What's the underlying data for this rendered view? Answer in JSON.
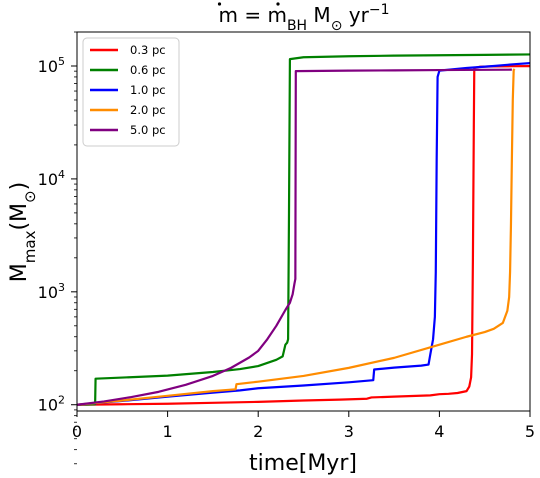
{
  "chart_data": {
    "type": "line",
    "title": "ṁ = ṁ_BH M⊙ yr⁻¹",
    "title_parts": {
      "lhs": "m",
      "eq": " = ",
      "rhs": "m",
      "sub": "BH",
      "unit_m": " M",
      "sun": "⊙",
      "unit_yr": " yr",
      "exp": "−1"
    },
    "xlabel": "time[Myr]",
    "ylabel_parts": {
      "main": "M",
      "sub": "max",
      "unit_open": "(M",
      "sun": "⊙",
      "unit_close": ")"
    },
    "xlim": [
      0,
      5
    ],
    "ylim": [
      88,
      200000
    ],
    "yscale": "log",
    "x_ticks": [
      "0",
      "1",
      "2",
      "3",
      "4",
      "5"
    ],
    "y_ticks": [
      {
        "value": 100,
        "base": "10",
        "exp": "2"
      },
      {
        "value": 1000,
        "base": "10",
        "exp": "3"
      },
      {
        "value": 10000,
        "base": "10",
        "exp": "4"
      },
      {
        "value": 100000,
        "base": "10",
        "exp": "5"
      }
    ],
    "legend_position": "upper-left",
    "series": [
      {
        "name": "0.3 pc",
        "color": "#ff0000",
        "points": [
          [
            0,
            100
          ],
          [
            0.5,
            101
          ],
          [
            1,
            102
          ],
          [
            1.5,
            104
          ],
          [
            2,
            106
          ],
          [
            2.5,
            109
          ],
          [
            2.9,
            111
          ],
          [
            3.2,
            113
          ],
          [
            3.25,
            116
          ],
          [
            3.5,
            118
          ],
          [
            3.9,
            121
          ],
          [
            4.0,
            124
          ],
          [
            4.1,
            125
          ],
          [
            4.2,
            127
          ],
          [
            4.3,
            132
          ],
          [
            4.33,
            145
          ],
          [
            4.35,
            175
          ],
          [
            4.36,
            280
          ],
          [
            4.37,
            2000
          ],
          [
            4.38,
            30000
          ],
          [
            4.385,
            96000
          ],
          [
            4.45,
            98500
          ],
          [
            4.6,
            99200
          ],
          [
            4.8,
            99600
          ],
          [
            5.0,
            99800
          ]
        ]
      },
      {
        "name": "0.6 pc",
        "color": "#008000",
        "points": [
          [
            0,
            100
          ],
          [
            0.2,
            101
          ],
          [
            0.205,
            170
          ],
          [
            0.5,
            174
          ],
          [
            1.0,
            181
          ],
          [
            1.5,
            195
          ],
          [
            1.8,
            207
          ],
          [
            2.0,
            220
          ],
          [
            2.2,
            250
          ],
          [
            2.27,
            268
          ],
          [
            2.3,
            340
          ],
          [
            2.32,
            355
          ],
          [
            2.33,
            380
          ],
          [
            2.34,
            5000
          ],
          [
            2.35,
            115000
          ],
          [
            2.5,
            119500
          ],
          [
            3,
            122000
          ],
          [
            3.5,
            123500
          ],
          [
            4,
            124500
          ],
          [
            4.5,
            125500
          ],
          [
            5,
            126500
          ]
        ]
      },
      {
        "name": "1.0 pc",
        "color": "#0000ff",
        "points": [
          [
            0,
            100
          ],
          [
            0.5,
            108
          ],
          [
            1.0,
            118
          ],
          [
            1.5,
            128
          ],
          [
            1.8,
            134
          ],
          [
            2.0,
            140
          ],
          [
            2.5,
            148
          ],
          [
            3.0,
            158
          ],
          [
            3.27,
            165
          ],
          [
            3.28,
            205
          ],
          [
            3.5,
            213
          ],
          [
            3.8,
            222
          ],
          [
            3.88,
            227
          ],
          [
            3.9,
            280
          ],
          [
            3.93,
            380
          ],
          [
            3.95,
            600
          ],
          [
            3.96,
            1500
          ],
          [
            3.97,
            15000
          ],
          [
            3.98,
            80000
          ],
          [
            4.0,
            91000
          ],
          [
            4.3,
            96000
          ],
          [
            4.6,
            100000
          ],
          [
            4.85,
            104000
          ],
          [
            5.0,
            106000
          ]
        ]
      },
      {
        "name": "2.0 pc",
        "color": "#ff8c00",
        "points": [
          [
            0,
            100
          ],
          [
            0.5,
            109
          ],
          [
            1.0,
            120
          ],
          [
            1.5,
            132
          ],
          [
            1.75,
            137
          ],
          [
            1.76,
            152
          ],
          [
            2.0,
            160
          ],
          [
            2.5,
            180
          ],
          [
            3.0,
            212
          ],
          [
            3.5,
            260
          ],
          [
            4.0,
            340
          ],
          [
            4.3,
            400
          ],
          [
            4.5,
            440
          ],
          [
            4.6,
            470
          ],
          [
            4.7,
            530
          ],
          [
            4.75,
            680
          ],
          [
            4.77,
            900
          ],
          [
            4.78,
            1500
          ],
          [
            4.79,
            4000
          ],
          [
            4.8,
            15000
          ],
          [
            4.81,
            50000
          ],
          [
            4.82,
            92000
          ],
          [
            4.83,
            94000
          ]
        ]
      },
      {
        "name": "5.0 pc",
        "color": "#800080",
        "points": [
          [
            0,
            100
          ],
          [
            0.3,
            107
          ],
          [
            0.6,
            117
          ],
          [
            0.9,
            130
          ],
          [
            1.2,
            150
          ],
          [
            1.5,
            180
          ],
          [
            1.7,
            212
          ],
          [
            1.9,
            262
          ],
          [
            2.0,
            300
          ],
          [
            2.1,
            380
          ],
          [
            2.2,
            500
          ],
          [
            2.3,
            690
          ],
          [
            2.35,
            800
          ],
          [
            2.38,
            950
          ],
          [
            2.4,
            1180
          ],
          [
            2.41,
            1300
          ],
          [
            2.415,
            90000
          ],
          [
            3,
            91000
          ],
          [
            3.5,
            91500
          ],
          [
            4,
            92000
          ],
          [
            4.5,
            92500
          ],
          [
            4.8,
            92800
          ]
        ]
      }
    ]
  }
}
